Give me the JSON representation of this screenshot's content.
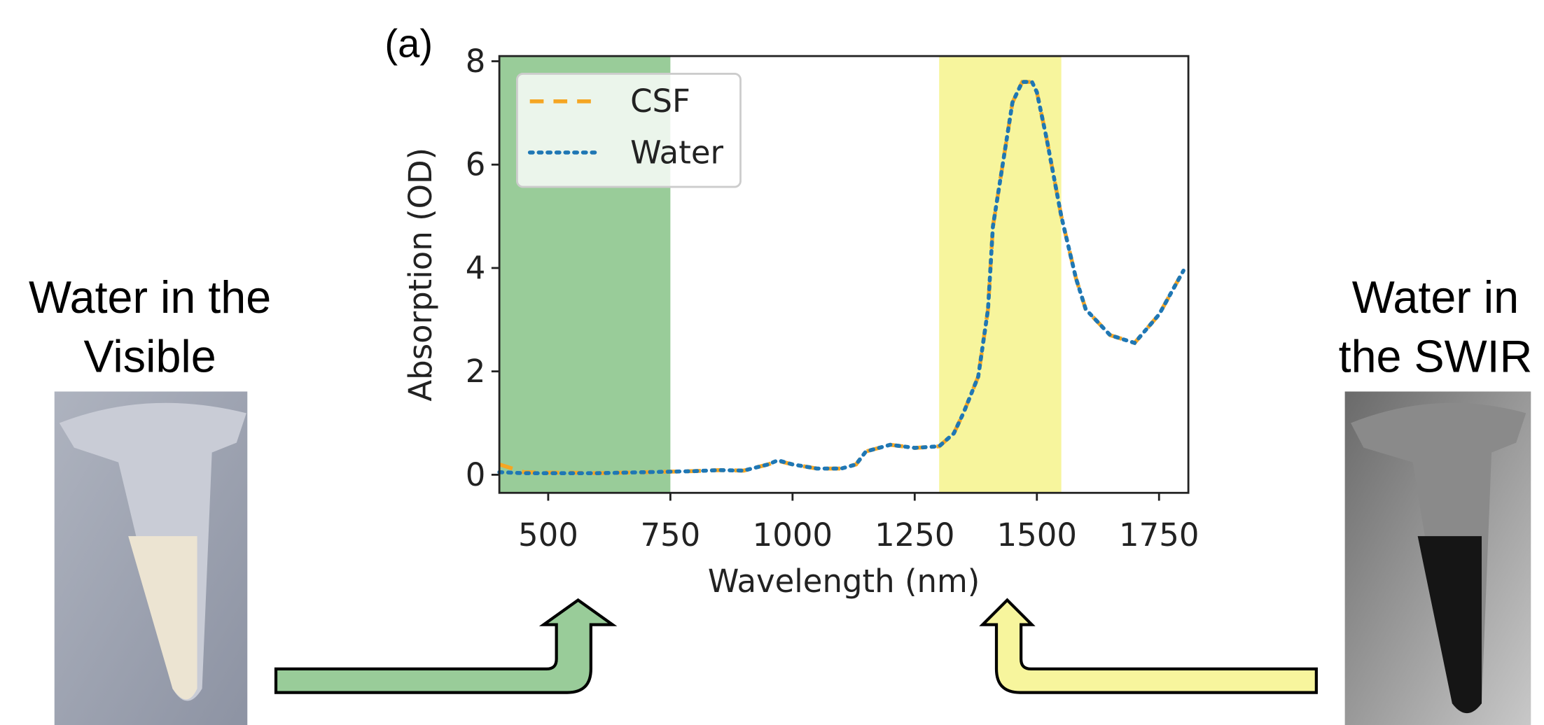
{
  "chart_data": {
    "type": "line",
    "panel_label": "(a)",
    "x_label": "Wavelength (nm)",
    "y_label": "Absorption (OD)",
    "x": [
      400,
      450,
      500,
      550,
      600,
      650,
      700,
      750,
      800,
      850,
      900,
      950,
      970,
      1000,
      1050,
      1100,
      1130,
      1150,
      1200,
      1250,
      1300,
      1330,
      1350,
      1380,
      1400,
      1410,
      1430,
      1450,
      1470,
      1490,
      1500,
      1520,
      1550,
      1580,
      1600,
      1650,
      1700,
      1750,
      1800
    ],
    "series": [
      {
        "name": "CSF",
        "color": "#f5a623",
        "style": "dashed",
        "values": [
          0.2,
          0.05,
          0.04,
          0.04,
          0.03,
          0.04,
          0.05,
          0.06,
          0.07,
          0.09,
          0.08,
          0.2,
          0.27,
          0.2,
          0.12,
          0.12,
          0.2,
          0.45,
          0.58,
          0.52,
          0.55,
          0.8,
          1.2,
          1.9,
          3.2,
          4.8,
          6.0,
          7.2,
          7.6,
          7.6,
          7.4,
          6.5,
          5.0,
          3.8,
          3.2,
          2.7,
          2.55,
          3.1,
          3.95
        ]
      },
      {
        "name": "Water",
        "color": "#1f77b4",
        "style": "dotted",
        "values": [
          0.05,
          0.03,
          0.03,
          0.03,
          0.03,
          0.04,
          0.05,
          0.06,
          0.07,
          0.09,
          0.08,
          0.2,
          0.28,
          0.2,
          0.12,
          0.12,
          0.2,
          0.45,
          0.58,
          0.52,
          0.55,
          0.8,
          1.2,
          1.9,
          3.2,
          4.8,
          6.0,
          7.2,
          7.6,
          7.6,
          7.4,
          6.5,
          5.0,
          3.8,
          3.2,
          2.7,
          2.55,
          3.1,
          3.95
        ]
      }
    ],
    "spans": [
      {
        "xmin": 400,
        "xmax": 750,
        "color": "#99cc99"
      },
      {
        "xmin": 1300,
        "xmax": 1550,
        "color": "#f7f59d"
      }
    ],
    "xlim": [
      400,
      1810
    ],
    "ylim": [
      -0.35,
      8.1
    ],
    "xticks": [
      500,
      750,
      1000,
      1250,
      1500,
      1750
    ],
    "yticks": [
      0,
      2,
      4,
      6,
      8
    ],
    "legend": "upper left"
  },
  "annotations": {
    "left_caption": [
      "Water in the",
      "Visible"
    ],
    "right_caption": [
      "Water in",
      "the SWIR"
    ]
  }
}
